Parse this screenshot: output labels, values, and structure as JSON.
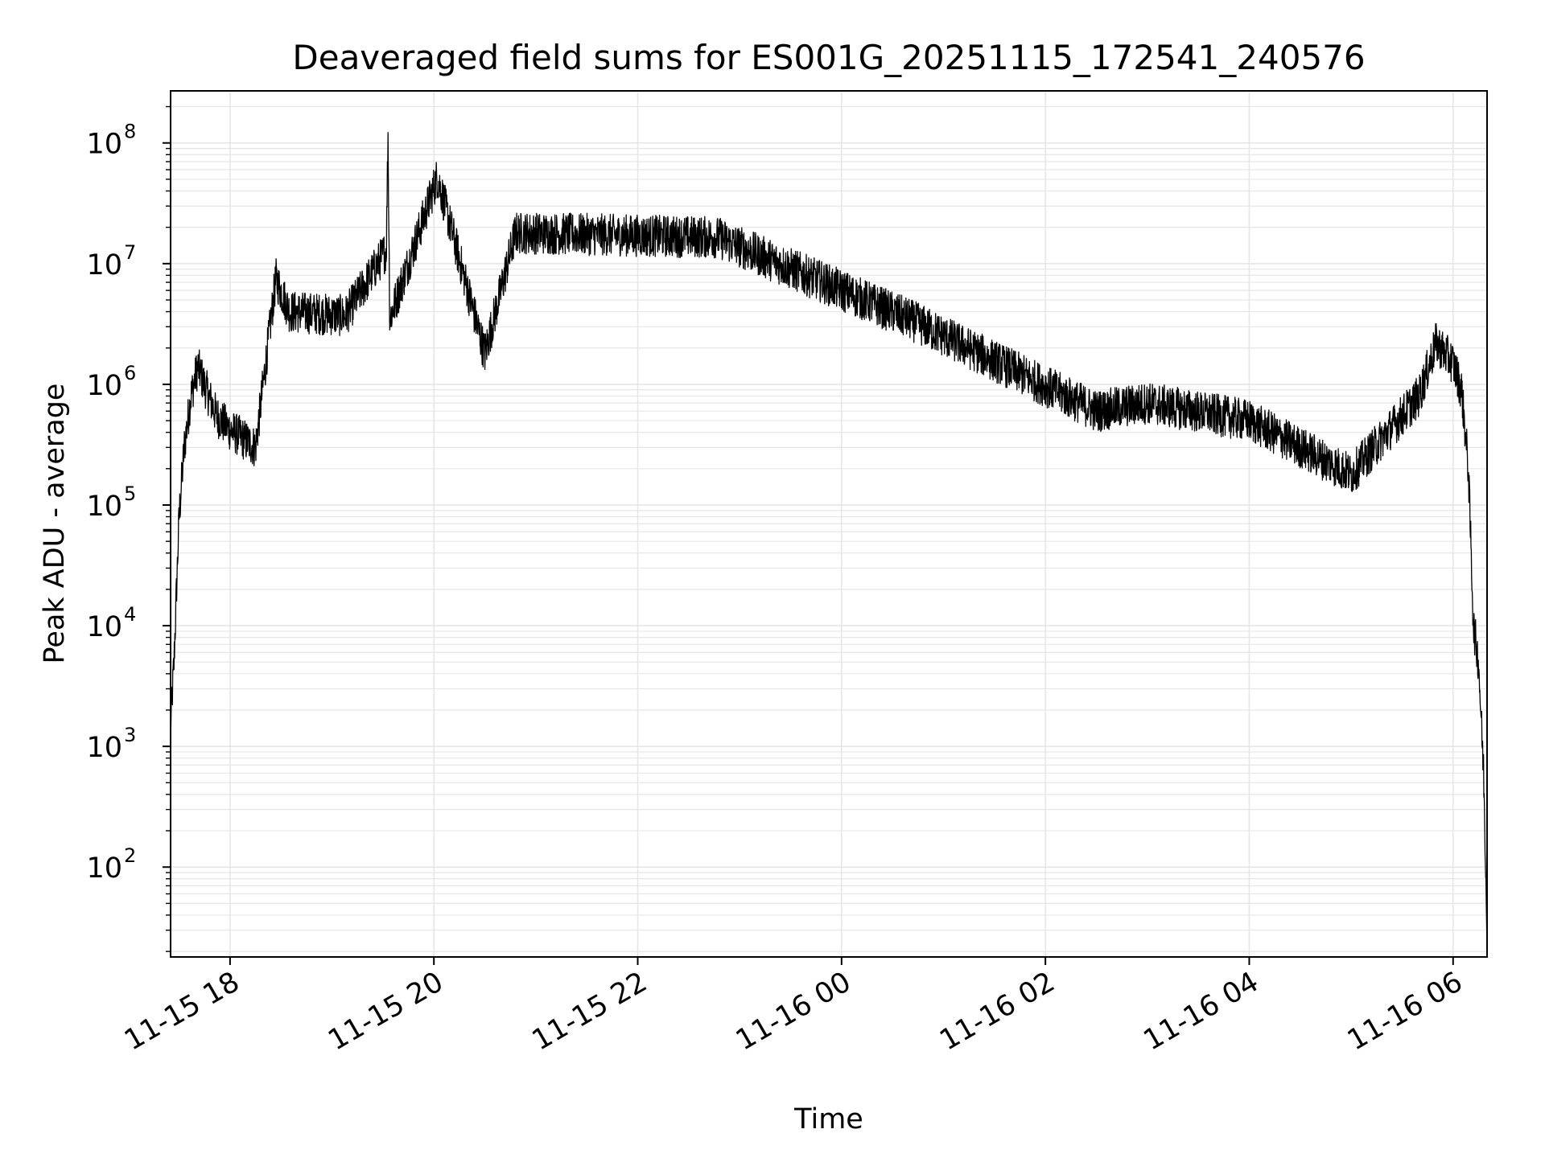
{
  "chart_data": {
    "type": "line",
    "title": "Deaveraged field sums for ES001G_20251115_172541_240576",
    "xlabel": "Time",
    "ylabel": "Peak ADU - average",
    "yscale": "log",
    "grid": true,
    "line_color": "#000000",
    "grid_color": "#e6e6e6",
    "x_range": [
      "11-15 17:25",
      "11-16 06:20"
    ],
    "y_range": [
      18,
      270000000
    ],
    "x_ticks": [
      {
        "label": "11-15 18",
        "t": "11-15 18:00"
      },
      {
        "label": "11-15 20",
        "t": "11-15 20:00"
      },
      {
        "label": "11-15 22",
        "t": "11-15 22:00"
      },
      {
        "label": "11-16 00",
        "t": "11-16 00:00"
      },
      {
        "label": "11-16 02",
        "t": "11-16 02:00"
      },
      {
        "label": "11-16 04",
        "t": "11-16 04:00"
      },
      {
        "label": "11-16 06",
        "t": "11-16 06:00"
      }
    ],
    "y_ticks": [
      {
        "base": "10",
        "exp": "2",
        "value": 100
      },
      {
        "base": "10",
        "exp": "3",
        "value": 1000
      },
      {
        "base": "10",
        "exp": "4",
        "value": 10000
      },
      {
        "base": "10",
        "exp": "5",
        "value": 100000
      },
      {
        "base": "10",
        "exp": "6",
        "value": 1000000
      },
      {
        "base": "10",
        "exp": "7",
        "value": 10000000
      },
      {
        "base": "10",
        "exp": "8",
        "value": 100000000
      }
    ],
    "series": [
      {
        "color": "#000000",
        "points": [
          {
            "t": "11-15 17:25",
            "v": 1500
          },
          {
            "t": "11-15 17:27",
            "v": 5000
          },
          {
            "t": "11-15 17:30",
            "v": 80000
          },
          {
            "t": "11-15 17:33",
            "v": 300000
          },
          {
            "t": "11-15 17:37",
            "v": 800000
          },
          {
            "t": "11-15 17:41",
            "v": 1400000
          },
          {
            "t": "11-15 17:46",
            "v": 900000
          },
          {
            "t": "11-15 17:52",
            "v": 550000
          },
          {
            "t": "11-15 18:00",
            "v": 420000
          },
          {
            "t": "11-15 18:15",
            "v": 300000
          },
          {
            "t": "11-15 18:27",
            "v": 7500000
          },
          {
            "t": "11-15 18:35",
            "v": 4000000
          },
          {
            "t": "11-15 19:08",
            "v": 3700000
          },
          {
            "t": "11-15 19:32",
            "v": 13000000
          },
          {
            "t": "11-15 19:33",
            "v": 125000000
          },
          {
            "t": "11-15 19:34",
            "v": 3500000
          },
          {
            "t": "11-15 20:02",
            "v": 52000000
          },
          {
            "t": "11-15 20:30",
            "v": 1800000
          },
          {
            "t": "11-15 20:48",
            "v": 18000000
          },
          {
            "t": "11-15 22:47",
            "v": 16500000
          },
          {
            "t": "11-16 00:41",
            "v": 3400000
          },
          {
            "t": "11-16 02:30",
            "v": 600000
          },
          {
            "t": "11-16 03:00",
            "v": 700000
          },
          {
            "t": "11-16 04:00",
            "v": 500000
          },
          {
            "t": "11-16 05:00",
            "v": 180000
          },
          {
            "t": "11-16 05:40",
            "v": 800000
          },
          {
            "t": "11-16 05:50",
            "v": 2200000
          },
          {
            "t": "11-16 06:00",
            "v": 1500000
          },
          {
            "t": "11-16 06:05",
            "v": 900000
          },
          {
            "t": "11-16 06:09",
            "v": 200000
          },
          {
            "t": "11-16 06:12",
            "v": 10000
          },
          {
            "t": "11-16 06:15",
            "v": 5000
          },
          {
            "t": "11-16 06:18",
            "v": 600
          },
          {
            "t": "11-16 06:20",
            "v": 30
          }
        ]
      }
    ]
  }
}
